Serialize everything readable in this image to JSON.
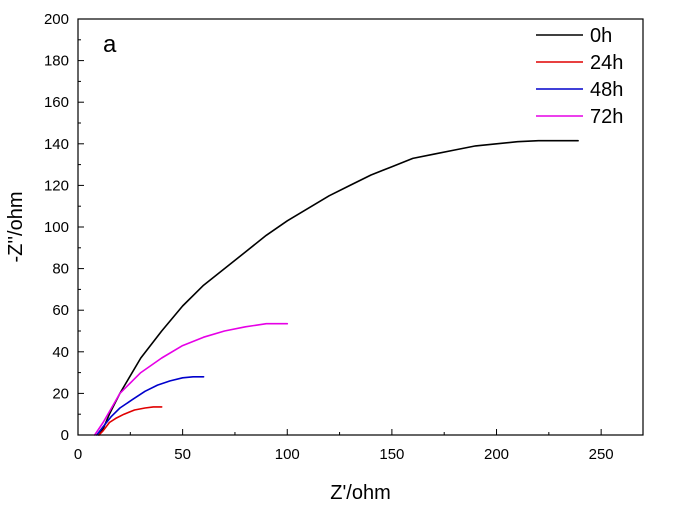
{
  "chart_data": {
    "type": "line",
    "panel_label": "a",
    "xlabel": "Z'/ohm",
    "ylabel": "-Z''/ohm",
    "xlim": [
      0,
      270
    ],
    "ylim": [
      0,
      200
    ],
    "x_ticks": [
      0,
      50,
      100,
      150,
      200,
      250
    ],
    "y_ticks": [
      0,
      20,
      40,
      60,
      80,
      100,
      120,
      140,
      160,
      180,
      200
    ],
    "legend_position": "top-right",
    "series": [
      {
        "name": "0h",
        "color": "#000000",
        "points": [
          [
            10,
            0
          ],
          [
            12,
            3
          ],
          [
            15,
            10
          ],
          [
            20,
            20
          ],
          [
            30,
            37
          ],
          [
            40,
            50
          ],
          [
            50,
            62
          ],
          [
            60,
            72
          ],
          [
            70,
            80
          ],
          [
            80,
            88
          ],
          [
            90,
            96
          ],
          [
            100,
            103
          ],
          [
            110,
            109
          ],
          [
            120,
            115
          ],
          [
            130,
            120
          ],
          [
            140,
            125
          ],
          [
            150,
            129
          ],
          [
            160,
            133
          ],
          [
            170,
            135
          ],
          [
            180,
            137
          ],
          [
            190,
            139
          ],
          [
            200,
            140
          ],
          [
            210,
            141
          ],
          [
            220,
            141.5
          ],
          [
            230,
            141.5
          ],
          [
            239,
            141.5
          ]
        ]
      },
      {
        "name": "24h",
        "color": "#e00000",
        "points": [
          [
            10,
            0
          ],
          [
            12,
            2
          ],
          [
            15,
            6
          ],
          [
            18,
            8
          ],
          [
            22,
            10
          ],
          [
            27,
            12
          ],
          [
            32,
            13
          ],
          [
            36,
            13.5
          ],
          [
            40,
            13.5
          ]
        ]
      },
      {
        "name": "48h",
        "color": "#0000cc",
        "points": [
          [
            9,
            0
          ],
          [
            12,
            4
          ],
          [
            16,
            9
          ],
          [
            20,
            13
          ],
          [
            26,
            17
          ],
          [
            32,
            21
          ],
          [
            38,
            24
          ],
          [
            44,
            26
          ],
          [
            50,
            27.5
          ],
          [
            55,
            28
          ],
          [
            60,
            28
          ]
        ]
      },
      {
        "name": "72h",
        "color": "#e600e6",
        "points": [
          [
            8,
            0
          ],
          [
            12,
            6
          ],
          [
            16,
            13
          ],
          [
            20,
            20
          ],
          [
            25,
            25
          ],
          [
            30,
            30
          ],
          [
            40,
            37
          ],
          [
            50,
            43
          ],
          [
            60,
            47
          ],
          [
            70,
            50
          ],
          [
            80,
            52
          ],
          [
            90,
            53.5
          ],
          [
            100,
            53.5
          ]
        ]
      }
    ]
  }
}
